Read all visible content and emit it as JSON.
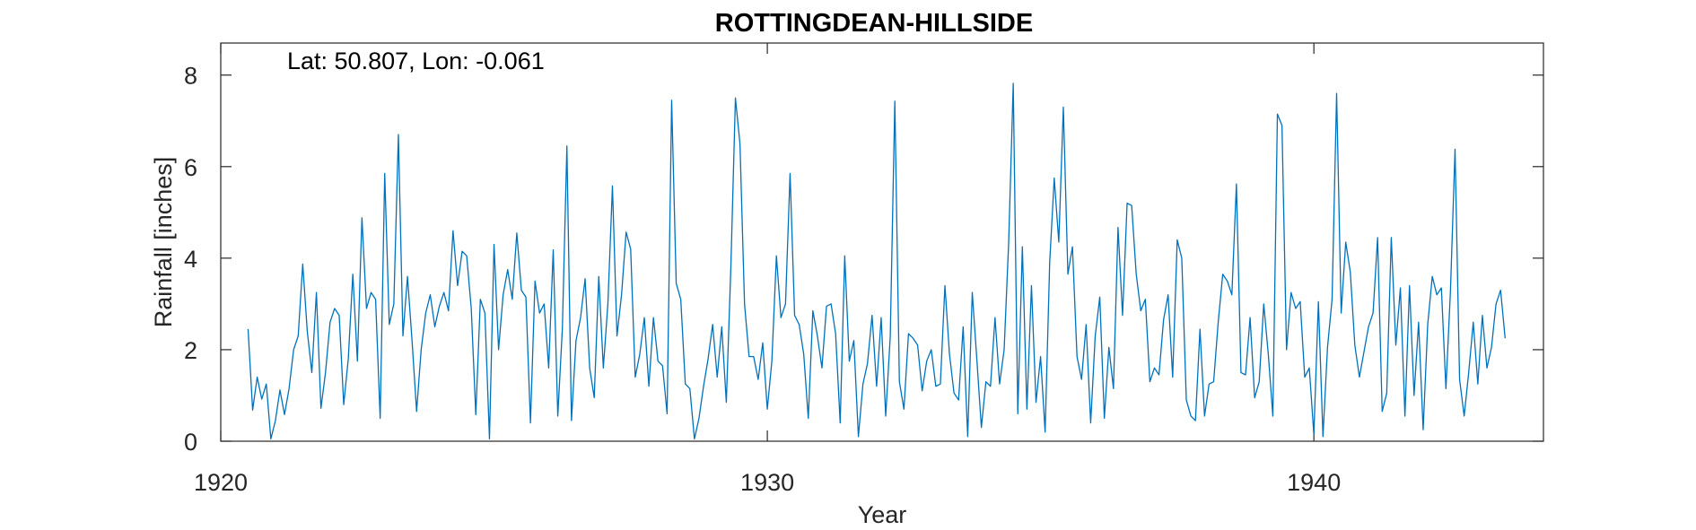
{
  "chart_data": {
    "type": "line",
    "title": "ROTTINGDEAN-HILLSIDE",
    "annotation": "Lat: 50.807, Lon: -0.061",
    "xlabel": "Year",
    "ylabel": "Rainfall [inches]",
    "xlim": [
      1920,
      1944.2
    ],
    "ylim": [
      0,
      8.7
    ],
    "x_ticks": [
      1920,
      1930,
      1940
    ],
    "x_tick_labels": [
      "1920",
      "1930",
      "1940"
    ],
    "y_ticks": [
      0,
      2,
      4,
      6,
      8
    ],
    "y_tick_labels": [
      "0",
      "2",
      "4",
      "6",
      "8"
    ],
    "grid": false,
    "box": true,
    "series": [
      {
        "color": "#0072BD",
        "x_start": 1920.5,
        "x_step": 0.08333,
        "values": [
          2.45,
          0.68,
          1.4,
          0.92,
          1.25,
          0.05,
          0.45,
          1.12,
          0.58,
          1.15,
          2.0,
          2.3,
          3.87,
          2.4,
          1.5,
          3.25,
          0.72,
          1.5,
          2.6,
          2.9,
          2.75,
          0.8,
          1.8,
          3.65,
          1.75,
          4.88,
          2.9,
          3.25,
          3.1,
          0.5,
          5.85,
          2.55,
          3.0,
          6.7,
          2.3,
          3.6,
          2.2,
          0.65,
          2.0,
          2.8,
          3.2,
          2.5,
          2.95,
          3.25,
          2.85,
          4.6,
          3.4,
          4.15,
          4.05,
          2.9,
          0.58,
          3.1,
          2.8,
          0.05,
          4.3,
          2.0,
          3.2,
          3.75,
          3.1,
          4.55,
          3.3,
          3.15,
          0.4,
          3.5,
          2.8,
          3.0,
          1.6,
          4.18,
          0.55,
          2.45,
          6.45,
          0.45,
          2.2,
          2.7,
          3.55,
          1.6,
          0.95,
          3.6,
          1.6,
          3.0,
          5.58,
          2.3,
          3.2,
          4.57,
          4.2,
          1.4,
          1.9,
          2.7,
          1.2,
          2.7,
          1.75,
          1.65,
          0.6,
          7.45,
          3.45,
          3.1,
          1.25,
          1.15,
          0.05,
          0.5,
          1.2,
          1.8,
          2.55,
          1.4,
          2.5,
          0.85,
          3.8,
          7.5,
          6.5,
          3.0,
          1.85,
          1.85,
          1.35,
          2.15,
          0.7,
          1.75,
          4.05,
          2.7,
          3.0,
          5.85,
          2.75,
          2.55,
          1.9,
          0.5,
          2.85,
          2.3,
          1.6,
          2.95,
          3.0,
          2.35,
          0.4,
          4.05,
          1.75,
          2.2,
          0.1,
          1.25,
          1.7,
          2.75,
          1.2,
          2.7,
          0.55,
          2.3,
          7.43,
          1.3,
          0.7,
          2.35,
          2.25,
          2.1,
          1.1,
          1.75,
          2.0,
          1.2,
          1.25,
          3.4,
          1.9,
          1.05,
          0.9,
          2.5,
          0.1,
          3.25,
          1.8,
          0.3,
          1.3,
          1.2,
          2.7,
          1.25,
          2.0,
          4.35,
          7.82,
          0.6,
          4.25,
          0.7,
          3.4,
          0.85,
          1.85,
          0.2,
          3.9,
          5.75,
          4.35,
          7.3,
          3.65,
          4.25,
          1.85,
          1.35,
          2.55,
          0.4,
          2.3,
          3.15,
          0.5,
          2.05,
          1.15,
          4.67,
          2.75,
          5.2,
          5.15,
          3.65,
          2.85,
          3.1,
          1.3,
          1.6,
          1.45,
          2.65,
          3.2,
          1.4,
          4.4,
          4.0,
          0.9,
          0.55,
          0.45,
          2.45,
          0.55,
          1.25,
          1.3,
          2.6,
          3.65,
          3.5,
          3.2,
          5.62,
          1.5,
          1.45,
          2.7,
          0.95,
          1.3,
          3.0,
          1.9,
          0.55,
          7.15,
          6.9,
          2.0,
          3.25,
          2.9,
          3.05,
          1.4,
          1.6,
          0.15,
          3.05,
          0.1,
          2.05,
          3.1,
          7.6,
          2.8,
          4.35,
          3.7,
          2.1,
          1.4,
          1.95,
          2.5,
          2.8,
          4.45,
          0.65,
          1.05,
          4.45,
          2.1,
          3.35,
          0.55,
          3.4,
          1.0,
          2.6,
          0.25,
          2.55,
          3.6,
          3.2,
          3.35,
          1.15,
          3.3,
          6.38,
          1.35,
          0.55,
          1.5,
          2.6,
          1.25,
          2.75,
          1.6,
          2.05,
          3.0,
          3.3,
          2.25
        ]
      }
    ]
  }
}
